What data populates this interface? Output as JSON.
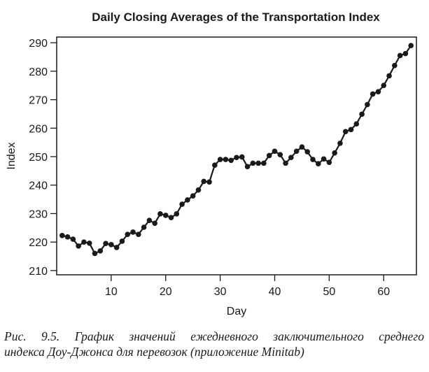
{
  "chart_data": {
    "type": "line",
    "title": "Daily Closing Averages of the Transportation Index",
    "xlabel": "Day",
    "ylabel": "Index",
    "xlim": [
      0,
      66
    ],
    "ylim": [
      208.5,
      292
    ],
    "x_ticks": [
      10,
      20,
      30,
      40,
      50,
      60
    ],
    "y_ticks": [
      210,
      220,
      230,
      240,
      250,
      260,
      270,
      280,
      290
    ],
    "x_tick_labels": [
      "10",
      "20",
      "30",
      "40",
      "50",
      "60"
    ],
    "y_tick_labels": [
      "210",
      "220",
      "230",
      "240",
      "250",
      "260",
      "270",
      "280",
      "290"
    ],
    "grid": false,
    "markers": "filled-circle",
    "color": "#1a1a1a",
    "series": [
      {
        "name": "Transportation Index",
        "x": [
          1,
          2,
          3,
          4,
          5,
          6,
          7,
          8,
          9,
          10,
          11,
          12,
          13,
          14,
          15,
          16,
          17,
          18,
          19,
          20,
          21,
          22,
          23,
          24,
          25,
          26,
          27,
          28,
          29,
          30,
          31,
          32,
          33,
          34,
          35,
          36,
          37,
          38,
          39,
          40,
          41,
          42,
          43,
          44,
          45,
          46,
          47,
          48,
          49,
          50,
          51,
          52,
          53,
          54,
          55,
          56,
          57,
          58,
          59,
          60,
          61,
          62,
          63,
          64,
          65
        ],
        "values": [
          222.3,
          221.8,
          221.0,
          218.6,
          220.0,
          219.6,
          216.0,
          216.9,
          219.5,
          219.1,
          218.1,
          220.3,
          222.7,
          223.5,
          222.7,
          225.2,
          227.6,
          226.6,
          229.9,
          229.4,
          228.6,
          229.9,
          233.3,
          234.8,
          236.2,
          238.3,
          241.3,
          241.1,
          247.0,
          249.0,
          249.0,
          248.7,
          249.7,
          249.9,
          246.5,
          247.7,
          247.7,
          247.7,
          250.4,
          251.9,
          250.7,
          247.7,
          249.7,
          251.9,
          253.4,
          251.7,
          249.0,
          247.5,
          249.2,
          248.0,
          251.3,
          254.7,
          258.8,
          259.5,
          261.5,
          264.9,
          268.3,
          272.0,
          272.8,
          275.0,
          278.4,
          282.0,
          285.5,
          286.2,
          289.0
        ]
      }
    ]
  },
  "caption": {
    "line1": "Рис. 9.5. График значений ежедневного заключительного среднего",
    "line2": "индекса Доу-Джонса для перевозок (приложение Minitab)"
  }
}
